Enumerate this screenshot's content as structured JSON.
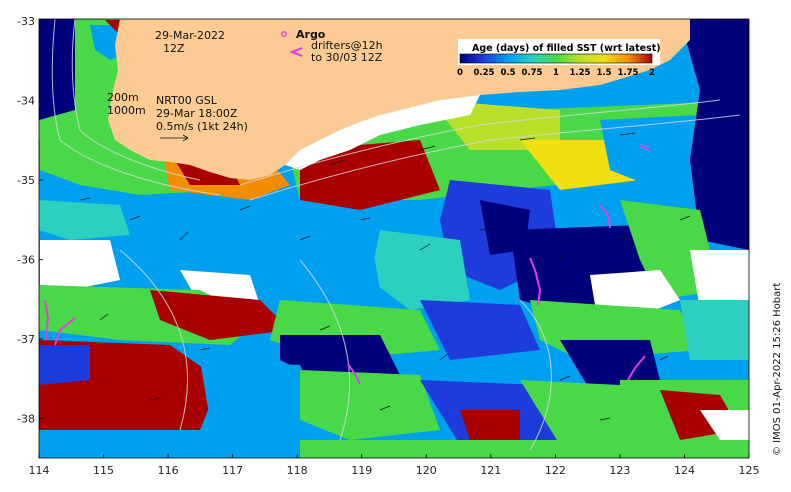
{
  "map": {
    "lon_ticks": [
      "114",
      "115",
      "116",
      "117",
      "118",
      "119",
      "120",
      "121",
      "122",
      "123",
      "124",
      "125"
    ],
    "lat_ticks": [
      "-33",
      "-34",
      "-35",
      "-36",
      "-37",
      "-38"
    ]
  },
  "annotations": {
    "date_line1": "29-Mar-2022",
    "date_line2": "12Z",
    "depth_200": "200m",
    "depth_1000": "1000m",
    "product_line1": "NRT00 GSL",
    "product_line2": "29-Mar 18:00Z",
    "product_line3": "0.5m/s (1kt 24h)",
    "argo_label": "Argo",
    "drifters_line1": "drifters@12h",
    "drifters_line2": "to 30/03 12Z",
    "argo_symbol": "o",
    "drifter_symbol": "<"
  },
  "colorbar": {
    "title": "Age (days) of filled SST (wrt latest)",
    "ticks": [
      "0",
      "0.25",
      "0.5",
      "0.75",
      "1",
      "1.25",
      "1.5",
      "1.75",
      "2"
    ]
  },
  "credit": "© IMOS 01-Apr-2022 15:26 Hobart",
  "colors": {
    "land": "#fccb94",
    "age_0": "#00007a",
    "age_025": "#1e3cdc",
    "age_05": "#00a0f0",
    "age_075": "#2ccfc0",
    "age_1": "#48d848",
    "age_125": "#b8e028",
    "age_15": "#f0e010",
    "age_175": "#f28c00",
    "age_2": "#a80000",
    "argo": "#e040e0"
  }
}
